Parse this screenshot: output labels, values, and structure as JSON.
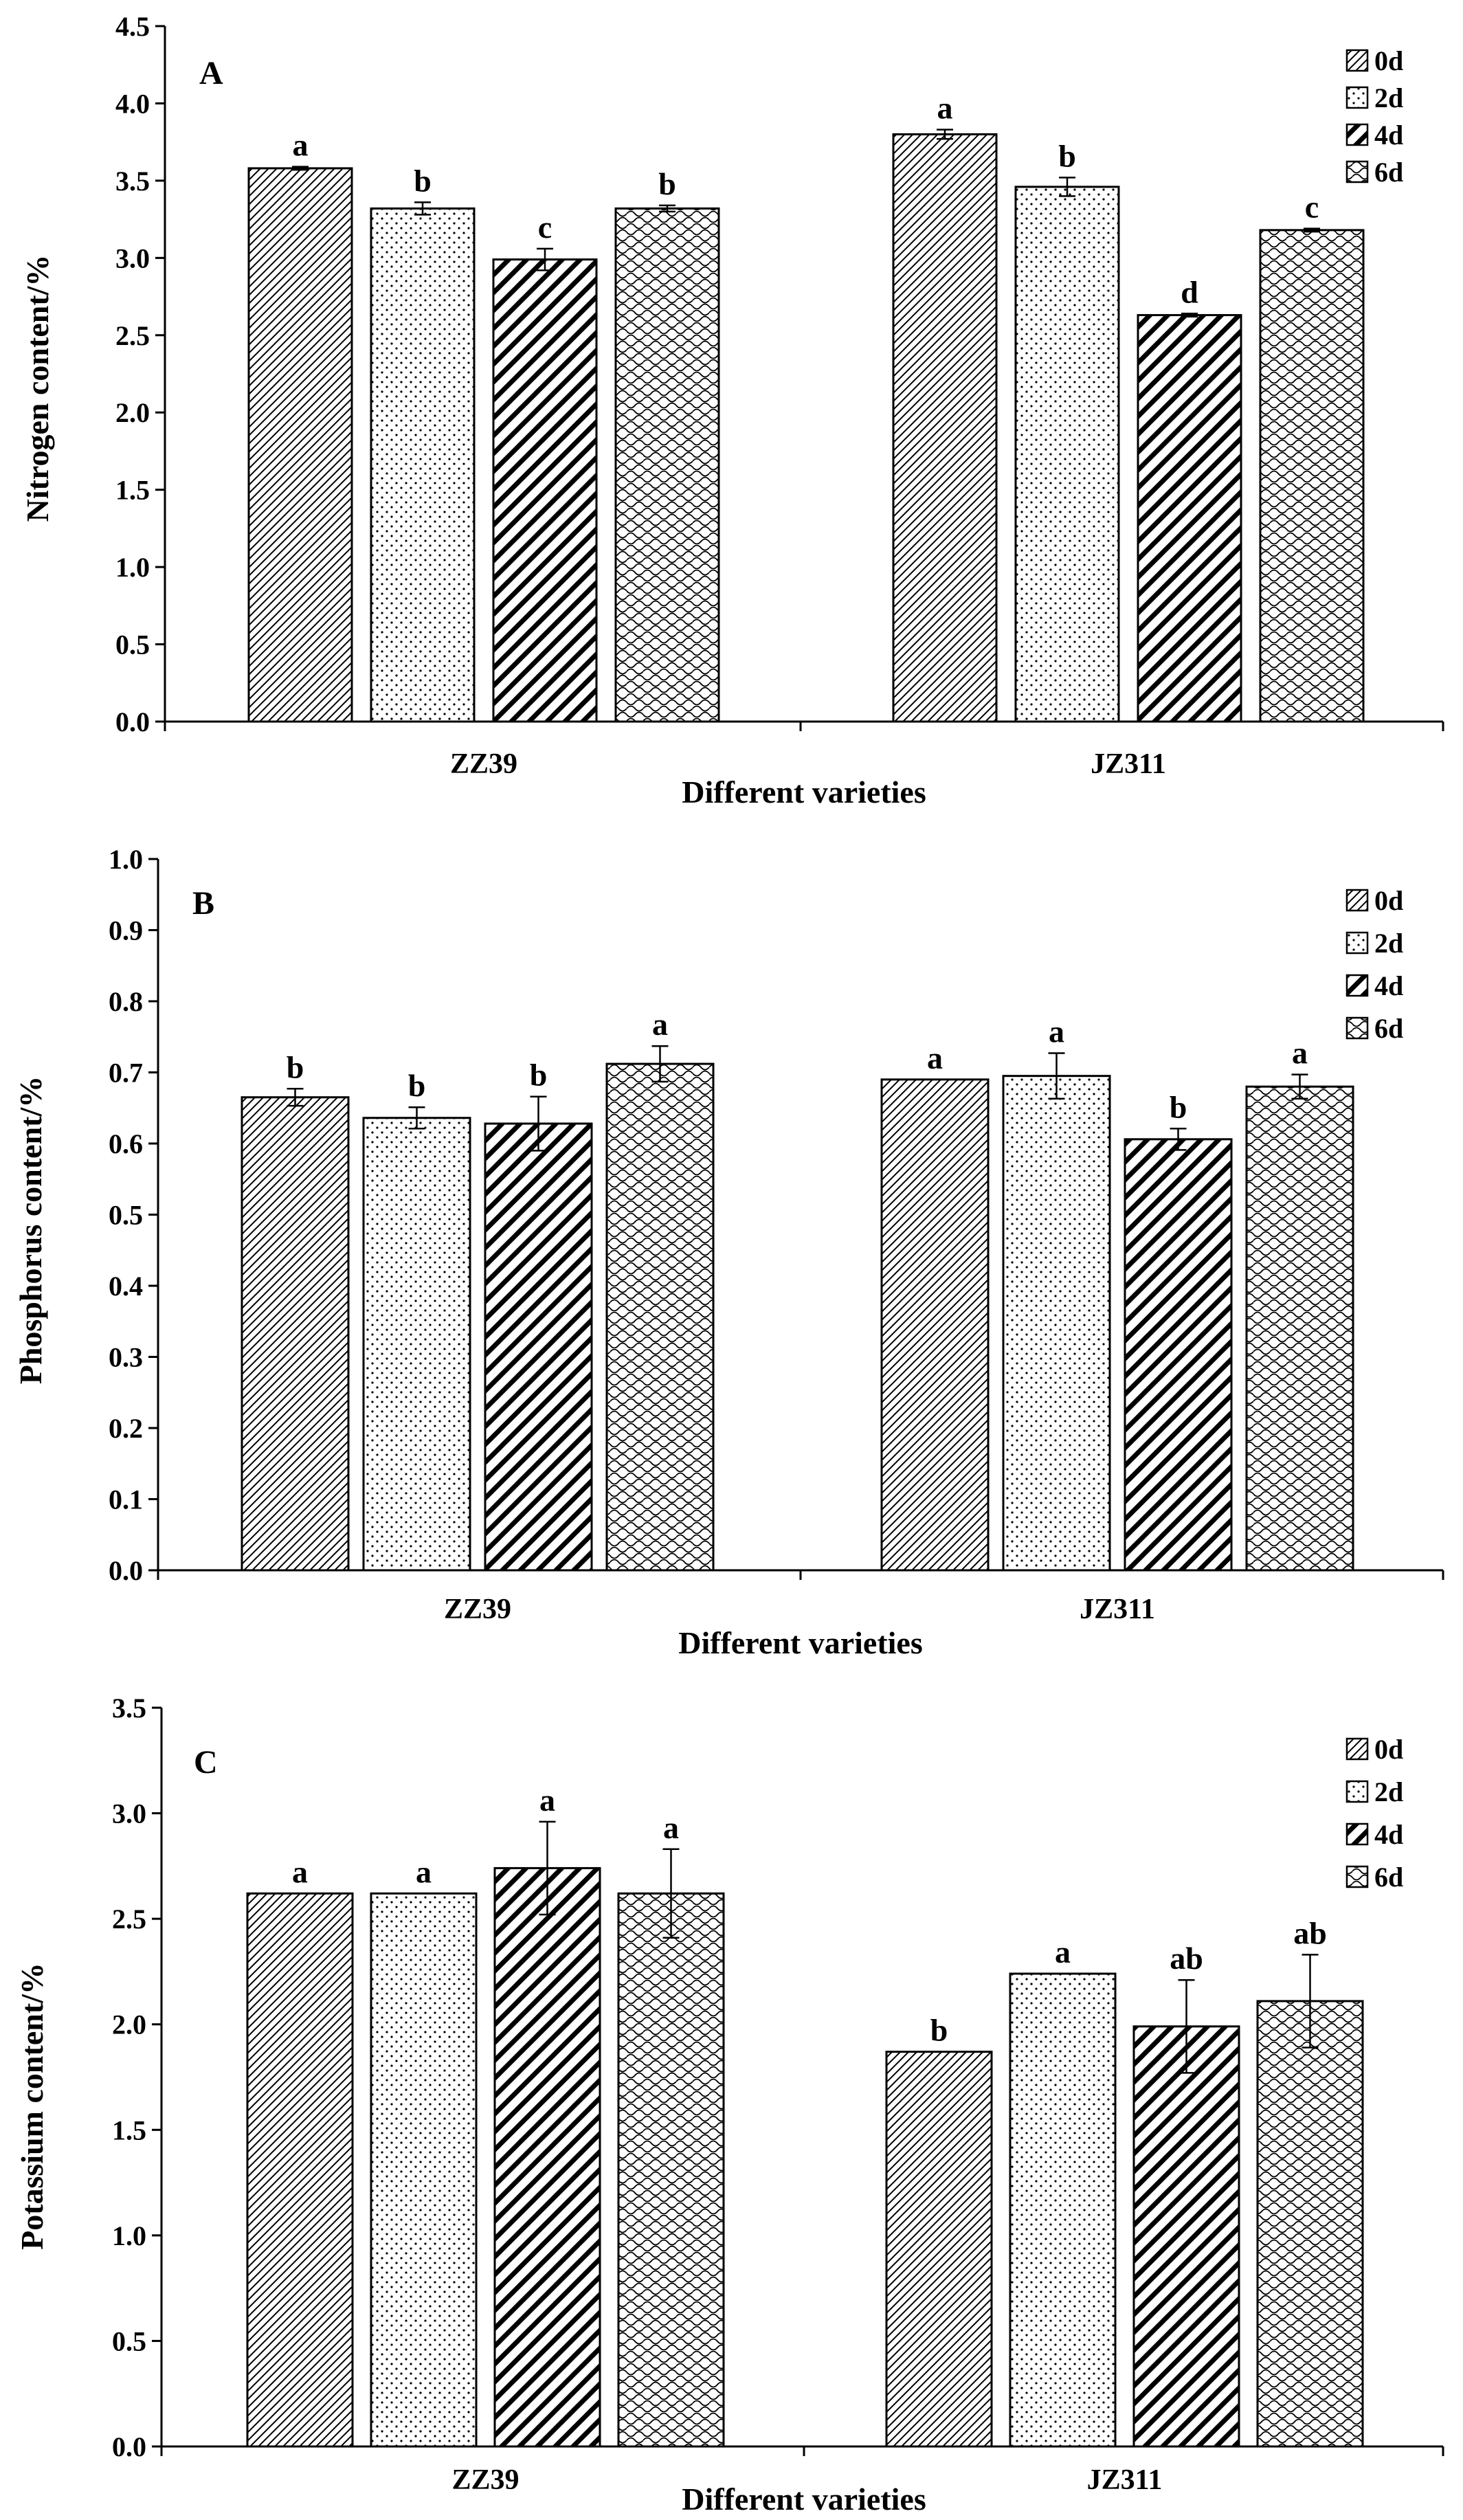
{
  "colors": {
    "bar_edge": "#000000",
    "bar_fill": "#ffffff",
    "axis": "#000000"
  },
  "chart_data": [
    {
      "type": "bar",
      "panel": "A",
      "ylabel": "Nitrogen content/%",
      "xlabel": "Different varieties",
      "ylim": [
        0,
        4.5
      ],
      "yticks": [
        "0.0",
        "0.5",
        "1.0",
        "1.5",
        "2.0",
        "2.5",
        "3.0",
        "3.5",
        "4.0",
        "4.5"
      ],
      "categories": [
        "ZZ39",
        "JZ311"
      ],
      "legend": [
        "0d",
        "2d",
        "4d",
        "6d"
      ],
      "legend_position": "top-right",
      "series": [
        {
          "name": "0d",
          "pattern": "diag-fine",
          "values": [
            3.58,
            3.8
          ],
          "errors": [
            0.01,
            0.03
          ],
          "sig": [
            "a",
            "a"
          ]
        },
        {
          "name": "2d",
          "pattern": "dots",
          "values": [
            3.32,
            3.46
          ],
          "errors": [
            0.04,
            0.06
          ],
          "sig": [
            "b",
            "b"
          ]
        },
        {
          "name": "4d",
          "pattern": "diag-bold",
          "values": [
            2.99,
            2.63
          ],
          "errors": [
            0.07,
            0.01
          ],
          "sig": [
            "c",
            "d"
          ]
        },
        {
          "name": "6d",
          "pattern": "waves",
          "values": [
            3.32,
            3.18
          ],
          "errors": [
            0.02,
            0.01
          ],
          "sig": [
            "b",
            "c"
          ]
        }
      ]
    },
    {
      "type": "bar",
      "panel": "B",
      "ylabel": "Phosphorus content/%",
      "xlabel": "Different varieties",
      "ylim": [
        0,
        1.0
      ],
      "yticks": [
        "0.0",
        "0.1",
        "0.2",
        "0.3",
        "0.4",
        "0.5",
        "0.6",
        "0.7",
        "0.8",
        "0.9",
        "1.0"
      ],
      "categories": [
        "ZZ39",
        "JZ311"
      ],
      "legend": [
        "0d",
        "2d",
        "4d",
        "6d"
      ],
      "legend_position": "top-right",
      "series": [
        {
          "name": "0d",
          "pattern": "diag-fine",
          "values": [
            0.665,
            0.69
          ],
          "errors": [
            0.012,
            0.0
          ],
          "sig": [
            "b",
            "a"
          ]
        },
        {
          "name": "2d",
          "pattern": "dots",
          "values": [
            0.636,
            0.695
          ],
          "errors": [
            0.015,
            0.032
          ],
          "sig": [
            "b",
            "a"
          ]
        },
        {
          "name": "4d",
          "pattern": "diag-bold",
          "values": [
            0.628,
            0.606
          ],
          "errors": [
            0.038,
            0.015
          ],
          "sig": [
            "b",
            "b"
          ]
        },
        {
          "name": "6d",
          "pattern": "waves",
          "values": [
            0.712,
            0.68
          ],
          "errors": [
            0.025,
            0.017
          ],
          "sig": [
            "a",
            "a"
          ]
        }
      ]
    },
    {
      "type": "bar",
      "panel": "C",
      "ylabel": "Potassium content/%",
      "xlabel": "Different varieties",
      "ylim": [
        0,
        3.5
      ],
      "yticks": [
        "0.0",
        "0.5",
        "1.0",
        "1.5",
        "2.0",
        "2.5",
        "3.0",
        "3.5"
      ],
      "categories": [
        "ZZ39",
        "JZ311"
      ],
      "legend": [
        "0d",
        "2d",
        "4d",
        "6d"
      ],
      "legend_position": "top-right",
      "series": [
        {
          "name": "0d",
          "pattern": "diag-fine",
          "values": [
            2.62,
            1.87
          ],
          "errors": [
            0.0,
            0.0
          ],
          "sig": [
            "a",
            "b"
          ]
        },
        {
          "name": "2d",
          "pattern": "dots",
          "values": [
            2.62,
            2.24
          ],
          "errors": [
            0.0,
            0.0
          ],
          "sig": [
            "a",
            "a"
          ]
        },
        {
          "name": "4d",
          "pattern": "diag-bold",
          "values": [
            2.74,
            1.99
          ],
          "errors": [
            0.22,
            0.22
          ],
          "sig": [
            "a",
            "ab"
          ]
        },
        {
          "name": "6d",
          "pattern": "waves",
          "values": [
            2.62,
            2.11
          ],
          "errors": [
            0.21,
            0.22
          ],
          "sig": [
            "a",
            "ab"
          ]
        }
      ]
    }
  ]
}
